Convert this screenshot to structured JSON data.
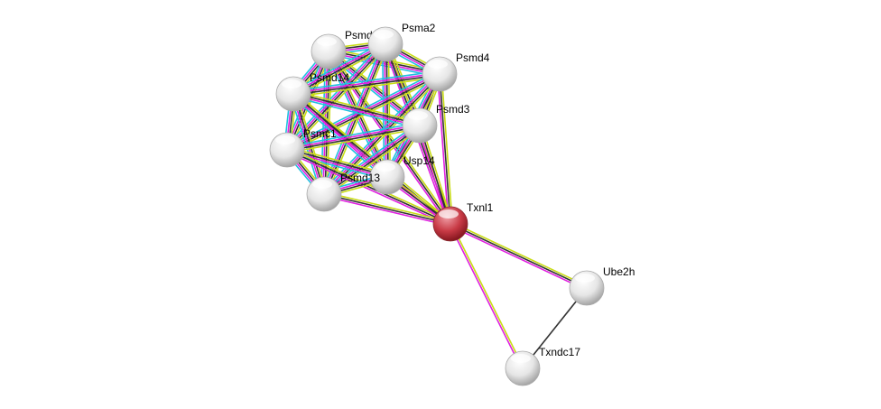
{
  "network": {
    "nodes": [
      {
        "id": "Psmd6",
        "label": "Psmd6",
        "query": false
      },
      {
        "id": "Psma2",
        "label": "Psma2",
        "query": false
      },
      {
        "id": "Psmd4",
        "label": "Psmd4",
        "query": false
      },
      {
        "id": "Psmd14",
        "label": "Psmd14",
        "query": false
      },
      {
        "id": "Psmd3",
        "label": "Psmd3",
        "query": false
      },
      {
        "id": "Psmc1",
        "label": "Psmc1",
        "query": false
      },
      {
        "id": "Usp14",
        "label": "Usp14",
        "query": false
      },
      {
        "id": "Psmd13",
        "label": "Psmd13",
        "query": false
      },
      {
        "id": "Txnl1",
        "label": "Txnl1",
        "query": true
      },
      {
        "id": "Ube2h",
        "label": "Ube2h",
        "query": false
      },
      {
        "id": "Txndc17",
        "label": "Txndc17",
        "query": false
      }
    ],
    "edge_colors": {
      "textmining": "#c8dc14",
      "coexpression": "#333333",
      "experiments": "#e020e0",
      "databases": "#20c0e0"
    },
    "node_colors": {
      "default": "#e8e8e8",
      "query": "#c83a45"
    },
    "edges": [
      {
        "a": "Txnl1",
        "b": "Ube2h",
        "types": [
          "textmining",
          "coexpression",
          "experiments"
        ]
      },
      {
        "a": "Txnl1",
        "b": "Txndc17",
        "types": [
          "textmining",
          "experiments"
        ]
      },
      {
        "a": "Ube2h",
        "b": "Txndc17",
        "types": [
          "coexpression"
        ]
      }
    ],
    "cluster": [
      "Psmd6",
      "Psma2",
      "Psmd4",
      "Psmd14",
      "Psmd3",
      "Psmc1",
      "Usp14",
      "Psmd13"
    ],
    "cluster_edge_types": [
      "textmining",
      "coexpression",
      "experiments",
      "databases"
    ],
    "cluster_to_query_types": [
      "textmining",
      "coexpression",
      "experiments"
    ]
  }
}
